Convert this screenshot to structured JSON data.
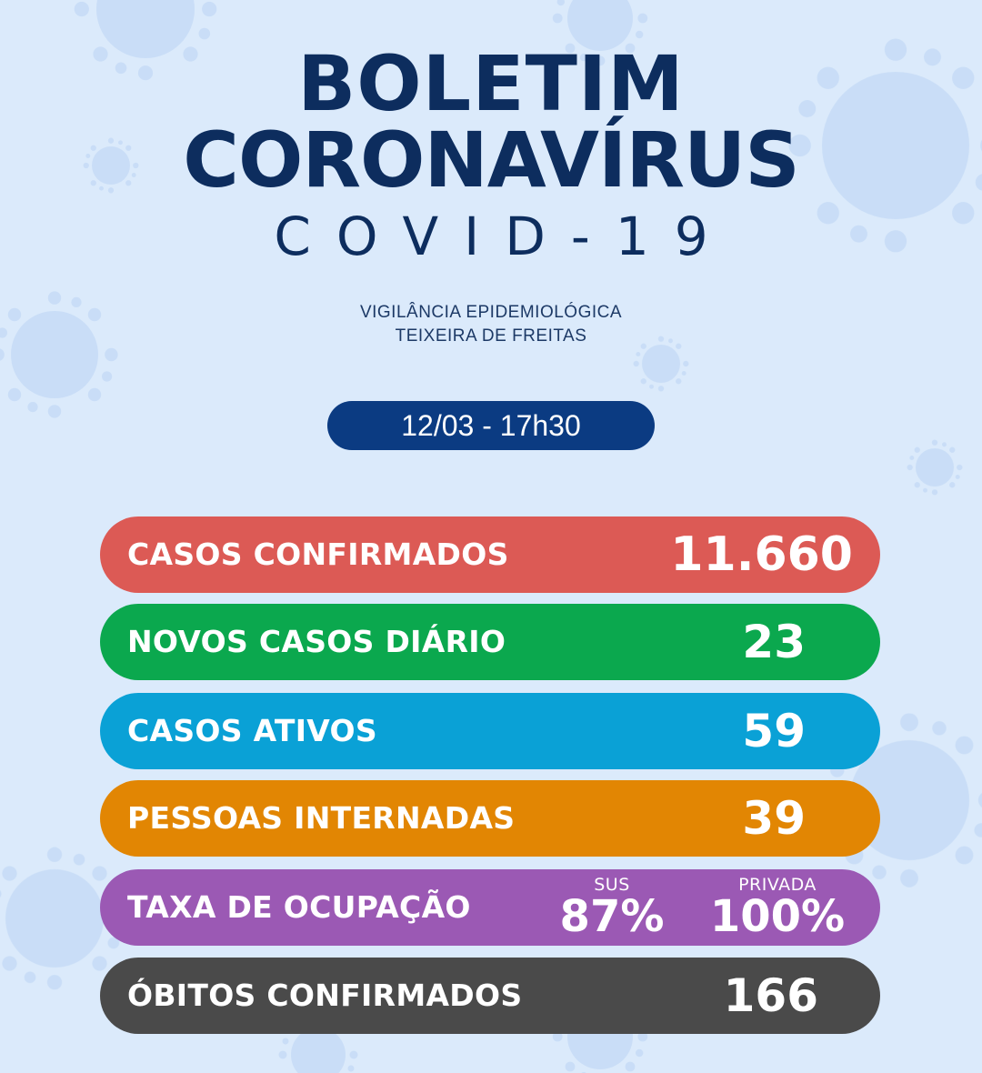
{
  "header": {
    "title_line1": "BOLETIM",
    "title_line2": "CORONAVÍRUS",
    "title_line3": "COVID-19",
    "subtitle_line1": "VIGILÂNCIA EPIDEMIOLÓGICA",
    "subtitle_line2": "TEIXEIRA DE FREITAS",
    "date": "12/03 - 17h30"
  },
  "stats": {
    "confirmed": {
      "label": "CASOS CONFIRMADOS",
      "value": "11.660",
      "color": "#dc5a55"
    },
    "new_daily": {
      "label": "NOVOS CASOS DIÁRIO",
      "value": "23",
      "color": "#0ba84e"
    },
    "active": {
      "label": "CASOS ATIVOS",
      "value": "59",
      "color": "#0aa1d6"
    },
    "hospitalized": {
      "label": "PESSOAS INTERNADAS",
      "value": "39",
      "color": "#e28603"
    },
    "occupancy": {
      "label": "TAXA DE OCUPAÇÃO",
      "sus_caption": "SUS",
      "sus_value": "87%",
      "private_caption": "PRIVADA",
      "private_value": "100%",
      "color": "#9b59b4"
    },
    "deaths": {
      "label": "ÓBITOS CONFIRMADOS",
      "value": "166",
      "color": "#4a4a4a"
    }
  },
  "theme": {
    "background": "#dbeafb",
    "navy": "#0d2d5e",
    "date_pill": "#0b3b82",
    "decor": "coronavirus-particle-icons"
  }
}
